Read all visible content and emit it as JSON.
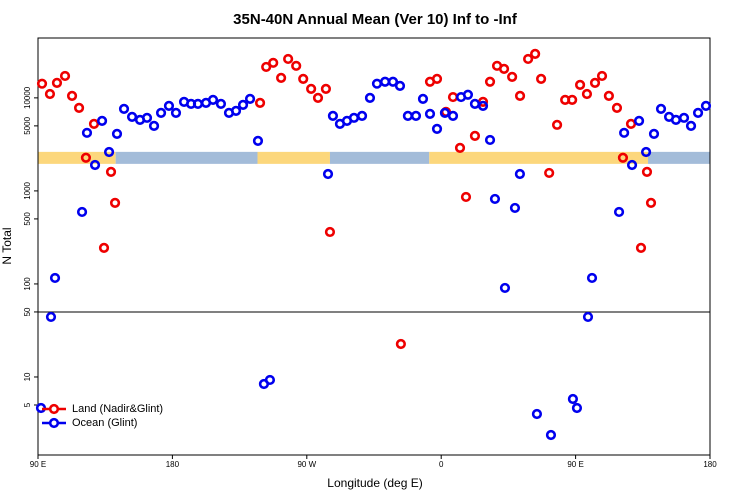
{
  "chart_data": {
    "type": "scatter",
    "title": "35N-40N Annual Mean (Ver 10)   Inf to -Inf",
    "x_label": "Longitude (deg E)",
    "y_label": "N Total",
    "log_y": true,
    "legend": "bottomleft",
    "xlim": [
      90,
      540
    ],
    "ylim": [
      1.45,
      44000
    ],
    "xticks": [
      {
        "value": 90,
        "label": "90 E"
      },
      180,
      {
        "value": 270,
        "label": "90 W"
      },
      {
        "value": 360,
        "label": "0"
      },
      {
        "value": 450,
        "label": "90 E"
      },
      {
        "value": 540,
        "label": "180"
      }
    ],
    "yticks": [
      5,
      10,
      50,
      100,
      500,
      1000,
      5000,
      10000
    ],
    "hline": 50,
    "surface_band": {
      "y": 2265,
      "land_color": "#fcd77c",
      "ocean_color": "#a3bcd9",
      "segments": [
        {
          "start": 90,
          "end": 142,
          "surface": "land"
        },
        {
          "start": 142,
          "end": 237,
          "surface": "ocean"
        },
        {
          "start": 237,
          "end": 285.5,
          "surface": "land"
        },
        {
          "start": 285.5,
          "end": 352,
          "surface": "ocean"
        },
        {
          "start": 352,
          "end": 498.5,
          "surface": "land"
        },
        {
          "start": 498.5,
          "end": 540,
          "surface": "ocean"
        }
      ]
    },
    "series": [
      {
        "name": "Land (Nadir&Glint)",
        "color": "#ee0000",
        "x": [
          92.7,
          98,
          102.7,
          108.1,
          112.8,
          117.5,
          122.1,
          127.5,
          134.2,
          138.9,
          141.6,
          238.7,
          242.8,
          247.5,
          252.8,
          257.5,
          262.9,
          267.6,
          272.9,
          277.5,
          282.8,
          285.5,
          333,
          352.5,
          357.2,
          363.2,
          367.9,
          372.6,
          376.6,
          382.6,
          388,
          392.7,
          397.4,
          402.1,
          407.5,
          412.8,
          418.2,
          422.9,
          426.9,
          432.3,
          437.6,
          443,
          447.7,
          453,
          457.6,
          463,
          467.7,
          472.3,
          477.7,
          481.7,
          487.1,
          493.8,
          497.8,
          500.5
        ],
        "values": [
          14200,
          11000,
          14500,
          17200,
          10500,
          7800,
          2270,
          5250,
          244,
          1600,
          743,
          8840,
          21500,
          23800,
          16400,
          26200,
          22100,
          16000,
          12500,
          10000,
          12500,
          362,
          22.6,
          14900,
          16000,
          7070,
          10200,
          2900,
          861,
          3900,
          9060,
          14900,
          22100,
          20500,
          16800,
          10500,
          26200,
          29700,
          16000,
          1560,
          5130,
          9510,
          9510,
          13800,
          11000,
          14500,
          17200,
          10500,
          7800,
          2270,
          5250,
          244,
          1600,
          743
        ]
      },
      {
        "name": "Ocean (Glint)",
        "color": "#0000ee",
        "x": [
          92,
          98.7,
          101.4,
          119.5,
          122.8,
          128.2,
          132.9,
          137.6,
          142.9,
          147.6,
          153,
          158.3,
          163,
          167.7,
          172.4,
          177.7,
          182.4,
          187.8,
          192.5,
          197.1,
          202.5,
          207.2,
          212.5,
          217.9,
          222.6,
          227.3,
          232,
          237.3,
          241.3,
          245.3,
          284.2,
          287.5,
          292.2,
          296.9,
          301.6,
          307,
          312.3,
          317,
          322.4,
          327.7,
          332.4,
          337.7,
          343.1,
          347.8,
          352.5,
          357.2,
          362.5,
          367.9,
          373.3,
          377.9,
          382.6,
          388,
          392.7,
          396,
          402.7,
          409.4,
          412.7,
          424.1,
          433.5,
          448.2,
          450.9,
          458.3,
          461,
          479.1,
          482.5,
          487.8,
          492.5,
          497.2,
          502.5,
          507.2,
          512.6,
          517.2,
          522.6,
          527.3,
          532,
          537.3
        ],
        "values": [
          4.64,
          44.2,
          116,
          594,
          4210,
          1900,
          5660,
          2620,
          4100,
          7620,
          6250,
          5800,
          6100,
          5000,
          6900,
          8200,
          6900,
          9060,
          8620,
          8620,
          8840,
          9510,
          8620,
          6900,
          7250,
          8410,
          9750,
          3450,
          8.41,
          9.29,
          1520,
          6400,
          5250,
          5660,
          6100,
          6400,
          10000,
          14200,
          14900,
          14900,
          13450,
          6400,
          6400,
          9750,
          6730,
          4640,
          6900,
          6400,
          10200,
          10800,
          8620,
          8200,
          3530,
          820,
          90.6,
          656,
          1520,
          4.0,
          2.38,
          5.8,
          4.64,
          44.2,
          116,
          594,
          4210,
          1900,
          5660,
          2620,
          4100,
          7620,
          6250,
          5800,
          6100,
          5000,
          6900,
          8200
        ]
      }
    ]
  }
}
